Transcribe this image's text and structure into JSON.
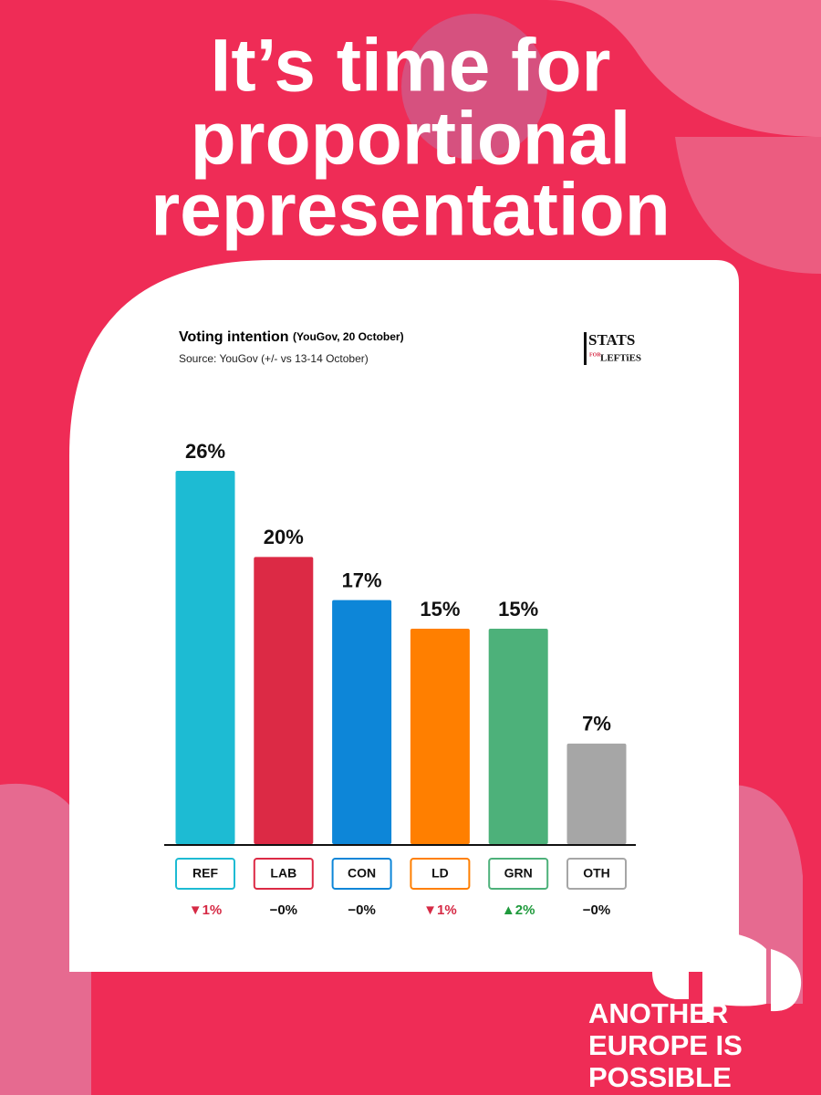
{
  "headline": [
    "It’s time for",
    "proportional",
    "representation"
  ],
  "chart_data": {
    "type": "bar",
    "title": "Voting intention",
    "title_note": "(YouGov, 20 October)",
    "subtitle": "Source: YouGov (+/- vs 13-14 October)",
    "logo": [
      "STATS",
      "FOR",
      "LEFTiES"
    ],
    "categories": [
      "REF",
      "LAB",
      "CON",
      "LD",
      "GRN",
      "OTH"
    ],
    "values": [
      26,
      20,
      17,
      15,
      15,
      7
    ],
    "value_labels": [
      "26%",
      "20%",
      "17%",
      "15%",
      "15%",
      "7%"
    ],
    "colors": [
      "#1dbbd3",
      "#dc2a45",
      "#0d86d8",
      "#ff7f00",
      "#4db17a",
      "#a6a6a6"
    ],
    "changes": {
      "values": [
        -1,
        0,
        0,
        -1,
        2,
        0
      ],
      "value_labels": [
        "▼1%",
        "−0%",
        "−0%",
        "▼1%",
        "▲2%",
        "−0%"
      ],
      "colors": [
        "#d62a45",
        "#111111",
        "#111111",
        "#d62a45",
        "#1f9a3c",
        "#111111"
      ]
    }
  },
  "footer": [
    "ANOTHER",
    "EUROPE IS",
    "POSSIBLE"
  ]
}
